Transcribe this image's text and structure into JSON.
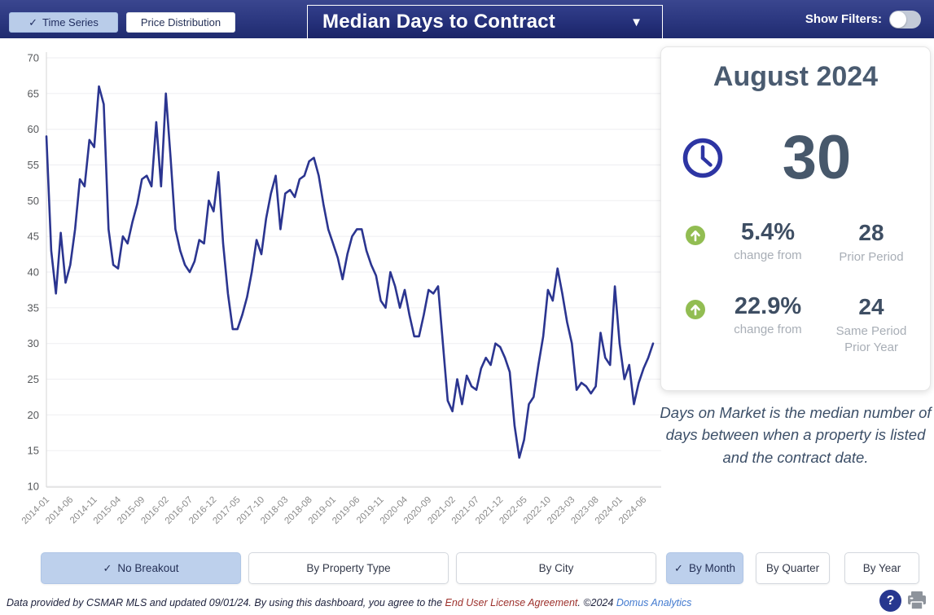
{
  "topbar": {
    "view_buttons": [
      {
        "label": "Time Series",
        "checked": true
      },
      {
        "label": "Price Distribution",
        "checked": false
      }
    ],
    "metric_dropdown": "Median Days to Contract",
    "show_filters_label": "Show Filters:",
    "filters_toggle_on": false
  },
  "icons": {
    "check": "✓",
    "caret": "▼",
    "help": "?"
  },
  "summary_card": {
    "period_title": "August 2024",
    "main_value": "30",
    "stats": [
      {
        "direction": "up",
        "pct": "5.4%",
        "sub": "change from",
        "value": "28",
        "value_label": "Prior Period"
      },
      {
        "direction": "up",
        "pct": "22.9%",
        "sub": "change from",
        "value": "24",
        "value_label": "Same Period Prior Year"
      }
    ]
  },
  "description": "Days on Market is the median number of days between when a property is listed and the contract date.",
  "breakout_buttons": [
    {
      "label": "No Breakout",
      "checked": true
    },
    {
      "label": "By Property Type",
      "checked": false
    },
    {
      "label": "By City",
      "checked": false
    }
  ],
  "period_buttons": [
    {
      "label": "By Month",
      "checked": true
    },
    {
      "label": "By Quarter",
      "checked": false
    },
    {
      "label": "By Year",
      "checked": false
    }
  ],
  "footer": {
    "text_1": "Data provided by CSMAR MLS and updated 09/01/24.  By using this dashboard, you agree to the ",
    "link_eula": "End User License Agreement",
    "text_2": ".  ©2024 ",
    "link_domus": "Domus Analytics"
  },
  "colors": {
    "topbar_navy": "#2b377f",
    "selected_button_blue": "#bdd0ec",
    "line_navy": "#2b3590",
    "card_text_slate": "#47586b",
    "positive_green": "#92bd52",
    "muted_gray": "#a8aeb6",
    "eula_red": "#9c2f2a",
    "domus_blue": "#4179cf"
  },
  "chart_data": {
    "type": "line",
    "title": "Median Days to Contract",
    "xlabel": "",
    "ylabel": "",
    "grid": true,
    "legend": false,
    "ylim": [
      10,
      70
    ],
    "y_ticks": [
      10,
      15,
      20,
      25,
      30,
      35,
      40,
      45,
      50,
      55,
      60,
      65,
      70
    ],
    "x_tick_labels": [
      "2014-01",
      "2014-06",
      "2014-11",
      "2015-04",
      "2015-09",
      "2016-02",
      "2016-07",
      "2016-12",
      "2017-05",
      "2017-10",
      "2018-03",
      "2018-08",
      "2019-01",
      "2019-06",
      "2019-11",
      "2020-04",
      "2020-09",
      "2021-02",
      "2021-07",
      "2021-12",
      "2022-05",
      "2022-10",
      "2023-03",
      "2023-08",
      "2024-01",
      "2024-06"
    ],
    "line_color": "#2b3590",
    "categories": [
      "2014-01",
      "2014-02",
      "2014-03",
      "2014-04",
      "2014-05",
      "2014-06",
      "2014-07",
      "2014-08",
      "2014-09",
      "2014-10",
      "2014-11",
      "2014-12",
      "2015-01",
      "2015-02",
      "2015-03",
      "2015-04",
      "2015-05",
      "2015-06",
      "2015-07",
      "2015-08",
      "2015-09",
      "2015-10",
      "2015-11",
      "2015-12",
      "2016-01",
      "2016-02",
      "2016-03",
      "2016-04",
      "2016-05",
      "2016-06",
      "2016-07",
      "2016-08",
      "2016-09",
      "2016-10",
      "2016-11",
      "2016-12",
      "2017-01",
      "2017-02",
      "2017-03",
      "2017-04",
      "2017-05",
      "2017-06",
      "2017-07",
      "2017-08",
      "2017-09",
      "2017-10",
      "2017-11",
      "2017-12",
      "2018-01",
      "2018-02",
      "2018-03",
      "2018-04",
      "2018-05",
      "2018-06",
      "2018-07",
      "2018-08",
      "2018-09",
      "2018-10",
      "2018-11",
      "2018-12",
      "2019-01",
      "2019-02",
      "2019-03",
      "2019-04",
      "2019-05",
      "2019-06",
      "2019-07",
      "2019-08",
      "2019-09",
      "2019-10",
      "2019-11",
      "2019-12",
      "2020-01",
      "2020-02",
      "2020-03",
      "2020-04",
      "2020-05",
      "2020-06",
      "2020-07",
      "2020-08",
      "2020-09",
      "2020-10",
      "2020-11",
      "2020-12",
      "2021-01",
      "2021-02",
      "2021-03",
      "2021-04",
      "2021-05",
      "2021-06",
      "2021-07",
      "2021-08",
      "2021-09",
      "2021-10",
      "2021-11",
      "2021-12",
      "2022-01",
      "2022-02",
      "2022-03",
      "2022-04",
      "2022-05",
      "2022-06",
      "2022-07",
      "2022-08",
      "2022-09",
      "2022-10",
      "2022-11",
      "2022-12",
      "2023-01",
      "2023-02",
      "2023-03",
      "2023-04",
      "2023-05",
      "2023-06",
      "2023-07",
      "2023-08",
      "2023-09",
      "2023-10",
      "2023-11",
      "2023-12",
      "2024-01",
      "2024-02",
      "2024-03",
      "2024-04",
      "2024-05",
      "2024-06",
      "2024-07",
      "2024-08"
    ],
    "values": [
      59,
      43,
      37,
      45.5,
      38.5,
      41,
      46,
      53,
      52,
      58.5,
      57.5,
      66,
      63.5,
      46,
      41,
      40.5,
      45,
      44,
      47,
      49.5,
      53,
      53.5,
      52,
      61,
      52,
      65,
      56,
      46,
      43,
      41,
      40,
      41.5,
      44.5,
      44,
      50,
      48.5,
      54,
      44,
      37,
      32,
      32,
      34,
      36.5,
      40,
      44.5,
      42.5,
      47.5,
      51,
      53.5,
      46,
      51,
      51.5,
      50.5,
      53,
      53.5,
      55.5,
      56,
      53.5,
      49.5,
      46,
      44,
      42,
      39,
      42.5,
      45,
      46,
      46,
      43,
      41,
      39.5,
      36,
      35,
      40,
      38,
      35,
      37.5,
      34,
      31,
      31,
      34,
      37.5,
      37,
      38,
      30,
      22,
      20.5,
      25,
      21.5,
      25.5,
      24,
      23.5,
      26.5,
      28,
      27,
      30,
      29.5,
      28,
      26,
      18.5,
      14,
      16.5,
      21.5,
      22.5,
      27,
      31,
      37.5,
      36,
      40.5,
      37,
      33,
      30,
      23.5,
      24.5,
      24,
      23,
      24,
      31.5,
      28,
      27,
      38,
      30,
      25,
      27,
      21.5,
      24.5,
      26.5,
      28,
      30
    ]
  }
}
